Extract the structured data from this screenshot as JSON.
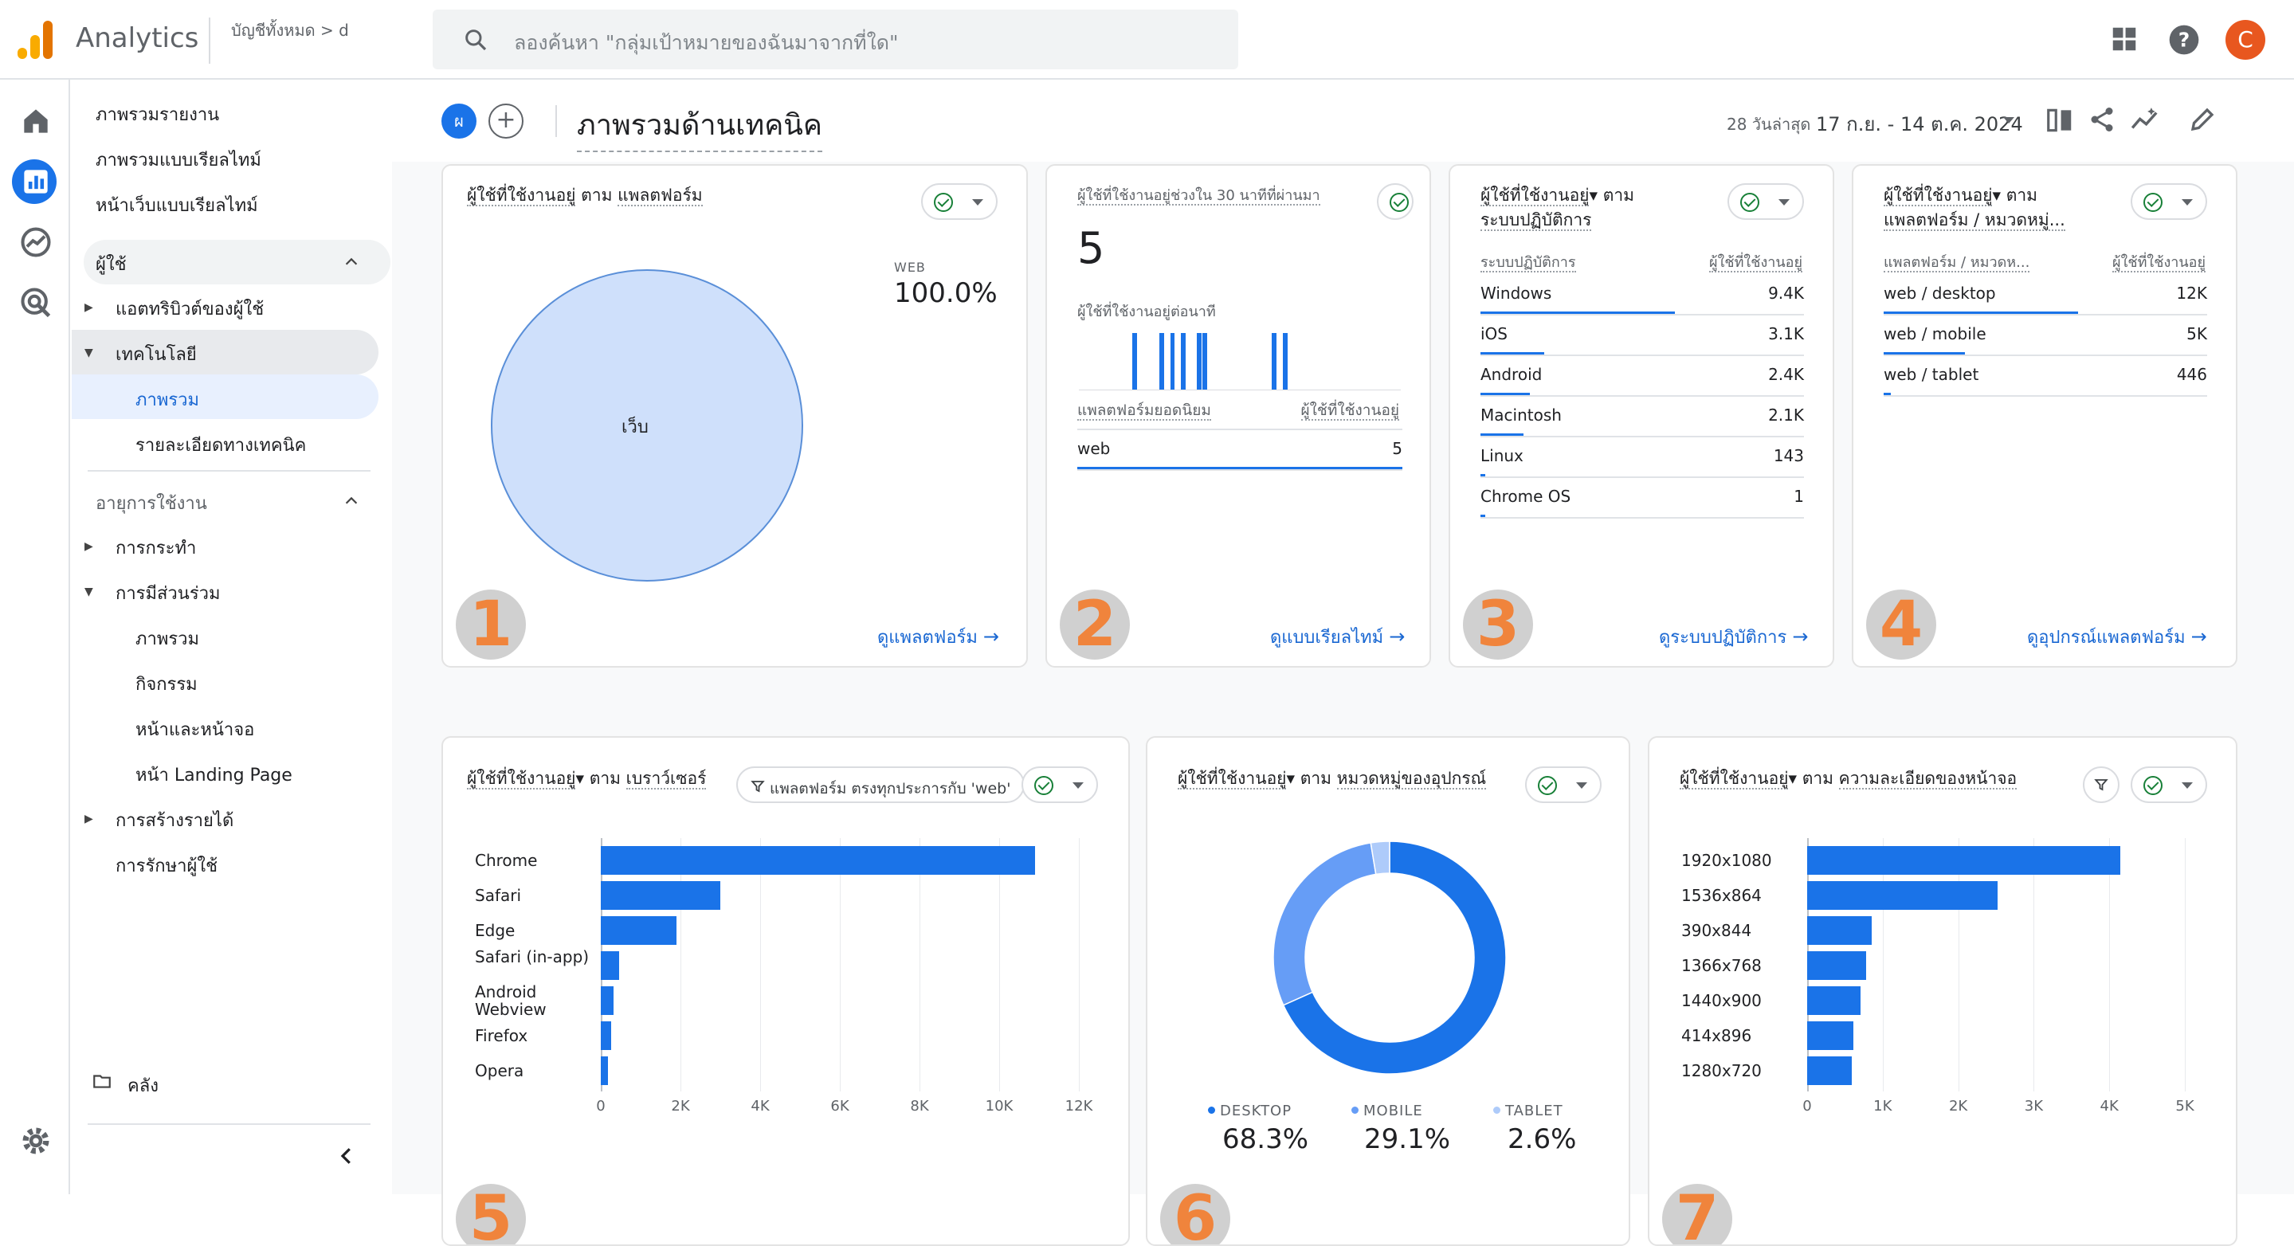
{
  "app": {
    "name": "Analytics",
    "account_line1": "บัญชีทั้งหมด > d",
    "search_placeholder": "ลองค้นหา \"กลุ่มเป้าหมายของฉันมาจากที่ใด\"",
    "avatar_letter": "C"
  },
  "nav": {
    "items": [
      "ภาพรวมรายงาน",
      "ภาพรวมแบบเรียลไทม์",
      "หน้าเว็บแบบเรียลไทม์"
    ],
    "section_user": "ผู้ใช้",
    "user_items": [
      "แอตทริบิวต์ของผู้ใช้",
      "เทคโนโลยี"
    ],
    "tech_children": [
      "ภาพรวม",
      "รายละเอียดทางเทคนิค"
    ],
    "section_lifecycle": "อายุการใช้งาน",
    "lifecycle_items": [
      "การกระทำ",
      "การมีส่วนร่วม"
    ],
    "engagement_children": [
      "ภาพรวม",
      "กิจกรรม",
      "หน้าและหน้าจอ",
      "หน้า Landing Page"
    ],
    "lifecycle_more": [
      "การสร้างรายได้",
      "การรักษาผู้ใช้"
    ],
    "library": "คลัง"
  },
  "page": {
    "badge": "ผ",
    "add": "+",
    "title": "ภาพรวมด้านเทคนิค",
    "date_label": "28 วันล่าสุด",
    "date_range": "17 ก.ย. - 14 ต.ค. 2024"
  },
  "colors": {
    "accent": "#1a73e8",
    "light_blue": "#8ab4f8",
    "pale_blue": "#aecbfa",
    "number_badge": "#f0843c",
    "ok_green": "#188038"
  },
  "cards": {
    "c1": {
      "title_a": "ผู้ใช้ที่ใช้งานอยู่",
      "title_b": "ตาม",
      "title_c": "แพลตฟอร์ม",
      "legend_label": "WEB",
      "legend_value": "100.0%",
      "pie_label": "เว็บ",
      "link": "ดูแพลตฟอร์ม",
      "num": "1"
    },
    "c2": {
      "title": "ผู้ใช้ที่ใช้งานอยู่ช่วงใน 30 นาทีที่ผ่านมา",
      "value": "5",
      "sub": "ผู้ใช้ที่ใช้งานอยู่ต่อนาที",
      "col_l": "แพลตฟอร์มยอดนิยม",
      "col_r": "ผู้ใช้ที่ใช้งานอยู่",
      "row_label": "web",
      "row_value": "5",
      "link": "ดูแบบเรียลไทม์",
      "num": "2",
      "bars": [
        0,
        0,
        0,
        0,
        0,
        0,
        0,
        0,
        0,
        0,
        1,
        0,
        0,
        0,
        0,
        1,
        0,
        1,
        0,
        1,
        0,
        0,
        1,
        1,
        0,
        0,
        0,
        0,
        0,
        0,
        0,
        0,
        0,
        0,
        0,
        0,
        1,
        0,
        1,
        0,
        0,
        0,
        0,
        0,
        0,
        0,
        0,
        0,
        0,
        0,
        0,
        0,
        0,
        0,
        0,
        0,
        0,
        0,
        0,
        0
      ]
    },
    "c3": {
      "title_a": "ผู้ใช้ที่ใช้งานอยู่",
      "title_b": "ตาม",
      "title_c": "ระบบปฏิบัติการ",
      "col_l": "ระบบปฏิบัติการ",
      "col_r": "ผู้ใช้ที่ใช้งานอยู่",
      "rows": [
        {
          "label": "Windows",
          "value": "9.4K",
          "n": 9400
        },
        {
          "label": "iOS",
          "value": "3.1K",
          "n": 3100
        },
        {
          "label": "Android",
          "value": "2.4K",
          "n": 2400
        },
        {
          "label": "Macintosh",
          "value": "2.1K",
          "n": 2100
        },
        {
          "label": "Linux",
          "value": "143",
          "n": 143
        },
        {
          "label": "Chrome OS",
          "value": "1",
          "n": 1
        }
      ],
      "link": "ดูระบบปฏิบัติการ",
      "num": "3"
    },
    "c4": {
      "title_a": "ผู้ใช้ที่ใช้งานอยู่",
      "title_b": "ตาม",
      "title_c": "แพลตฟอร์ม / หมวดหมู่...",
      "col_l": "แพลตฟอร์ม / หมวดห...",
      "col_r": "ผู้ใช้ที่ใช้งานอยู่",
      "rows": [
        {
          "label": "web / desktop",
          "value": "12K",
          "n": 12000
        },
        {
          "label": "web / mobile",
          "value": "5K",
          "n": 5000
        },
        {
          "label": "web / tablet",
          "value": "446",
          "n": 446
        }
      ],
      "link": "ดูอุปกรณ์แพลตฟอร์ม",
      "num": "4"
    },
    "c5": {
      "title_a": "ผู้ใช้ที่ใช้งานอยู่",
      "title_b": "ตาม",
      "title_c": "เบราว์เซอร์",
      "filter": "แพลตฟอร์ม ตรงทุกประการกับ 'web'",
      "num": "5"
    },
    "c6": {
      "title_a": "ผู้ใช้ที่ใช้งานอยู่",
      "title_b": "ตาม",
      "title_c": "หมวดหมู่ของอุปกรณ์",
      "num": "6"
    },
    "c7": {
      "title_a": "ผู้ใช้ที่ใช้งานอยู่",
      "title_b": "ตาม",
      "title_c": "ความละเอียดของหน้าจอ",
      "num": "7"
    }
  },
  "chart_data": [
    {
      "type": "pie",
      "title": "ผู้ใช้ที่ใช้งานอยู่ ตาม แพลตฟอร์ม",
      "categories": [
        "เว็บ"
      ],
      "values": [
        100.0
      ]
    },
    {
      "type": "bar",
      "title": "ผู้ใช้ที่ใช้งานอยู่ ตาม เบราว์เซอร์",
      "orientation": "horizontal",
      "categories": [
        "Chrome",
        "Safari",
        "Edge",
        "Safari (in-app)",
        "Android Webview",
        "Firefox",
        "Opera"
      ],
      "values": [
        10900,
        3000,
        1900,
        450,
        320,
        250,
        180
      ],
      "xlim": [
        0,
        12000
      ],
      "xticks": [
        "0",
        "2K",
        "4K",
        "6K",
        "8K",
        "10K",
        "12K"
      ]
    },
    {
      "type": "pie",
      "title": "ผู้ใช้ที่ใช้งานอยู่ ตาม หมวดหมู่ของอุปกรณ์",
      "categories": [
        "DESKTOP",
        "MOBILE",
        "TABLET"
      ],
      "values": [
        68.3,
        29.1,
        2.6
      ],
      "labels": [
        "68.3%",
        "29.1%",
        "2.6%"
      ]
    },
    {
      "type": "bar",
      "title": "ผู้ใช้ที่ใช้งานอยู่ ตาม ความละเอียดของหน้าจอ",
      "orientation": "horizontal",
      "categories": [
        "1920x1080",
        "1536x864",
        "390x844",
        "1366x768",
        "1440x900",
        "414x896",
        "1280x720"
      ],
      "values": [
        4150,
        2520,
        850,
        780,
        710,
        610,
        590
      ],
      "xlim": [
        0,
        5000
      ],
      "xticks": [
        "0",
        "1K",
        "2K",
        "3K",
        "4K",
        "5K"
      ]
    }
  ]
}
